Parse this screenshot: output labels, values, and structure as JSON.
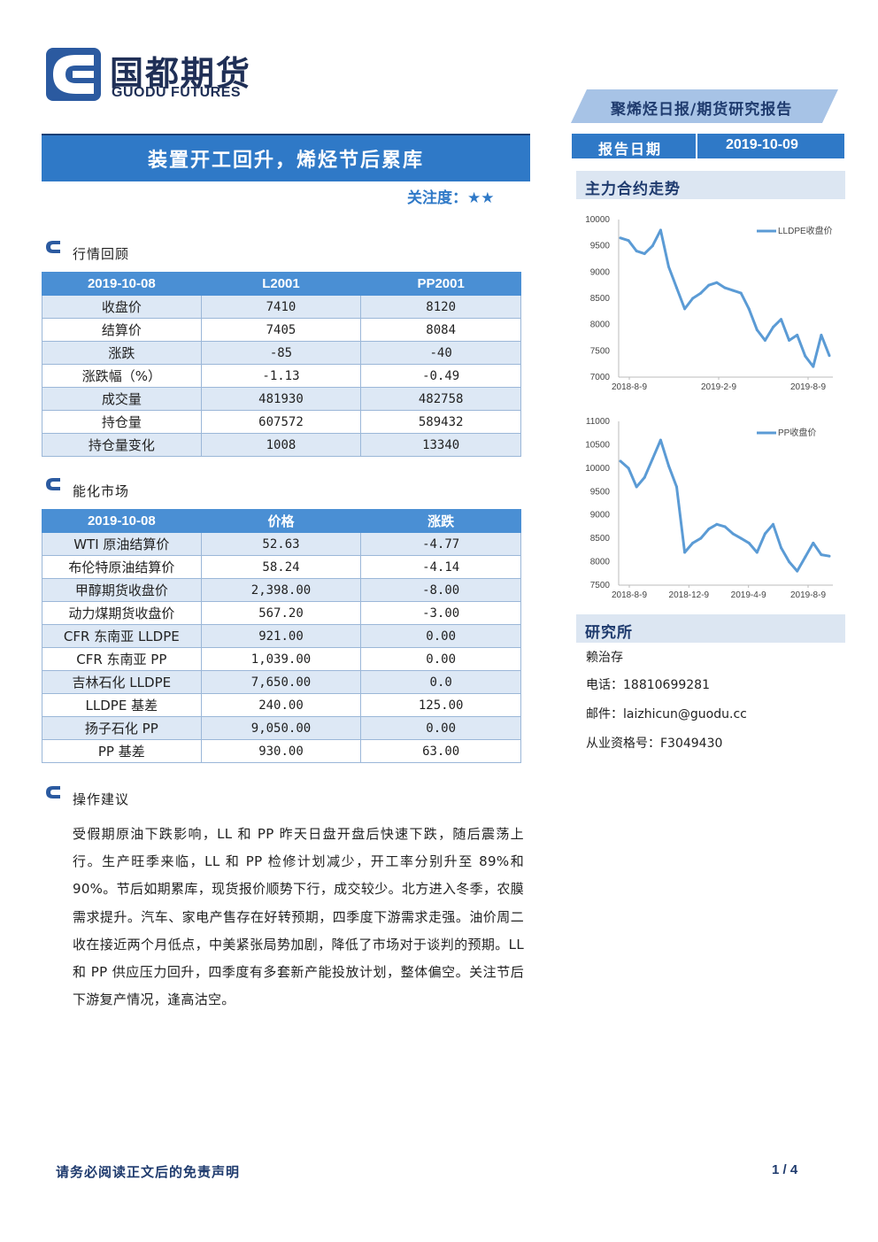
{
  "header": {
    "logo_cn": "国都期货",
    "logo_en": "GUODU FUTURES",
    "report_type": "聚烯烃日报/期货研究报告",
    "title": "装置开工回升，烯烃节后累库",
    "attention": "关注度：★★",
    "date_label": "报告日期",
    "date_value": "2019-10-09"
  },
  "market_review": {
    "heading": "行情回顾",
    "columns": [
      "2019-10-08",
      "L2001",
      "PP2001"
    ],
    "rows": [
      [
        "收盘价",
        "7410",
        "8120"
      ],
      [
        "结算价",
        "7405",
        "8084"
      ],
      [
        "涨跌",
        "-85",
        "-40"
      ],
      [
        "涨跌幅（%）",
        "-1.13",
        "-0.49"
      ],
      [
        "成交量",
        "481930",
        "482758"
      ],
      [
        "持仓量",
        "607572",
        "589432"
      ],
      [
        "持仓量变化",
        "1008",
        "13340"
      ]
    ]
  },
  "energy_market": {
    "heading": "能化市场",
    "columns": [
      "2019-10-08",
      "价格",
      "涨跌"
    ],
    "rows": [
      [
        "WTI 原油结算价",
        "52.63",
        "-4.77"
      ],
      [
        "布伦特原油结算价",
        "58.24",
        "-4.14"
      ],
      [
        "甲醇期货收盘价",
        "2,398.00",
        "-8.00"
      ],
      [
        "动力煤期货收盘价",
        "567.20",
        "-3.00"
      ],
      [
        "CFR 东南亚 LLDPE",
        "921.00",
        "0.00"
      ],
      [
        "CFR 东南亚 PP",
        "1,039.00",
        "0.00"
      ],
      [
        "吉林石化 LLDPE",
        "7,650.00",
        "0.0"
      ],
      [
        "LLDPE 基差",
        "240.00",
        "125.00"
      ],
      [
        "扬子石化 PP",
        "9,050.00",
        "0.00"
      ],
      [
        "PP 基差",
        "930.00",
        "63.00"
      ]
    ]
  },
  "advice": {
    "heading": "操作建议",
    "text": "受假期原油下跌影响，LL 和 PP 昨天日盘开盘后快速下跌，随后震荡上行。生产旺季来临，LL 和 PP 检修计划减少，开工率分别升至 89%和 90%。节后如期累库，现货报价顺势下行，成交较少。北方进入冬季，农膜需求提升。汽车、家电产售存在好转预期，四季度下游需求走强。油价周二收在接近两个月低点，中美紧张局势加剧，降低了市场对于谈判的预期。LL 和 PP 供应压力回升，四季度有多套新产能投放计划，整体偏空。关注节后下游复产情况，逢高沽空。"
  },
  "sidebar": {
    "trend_heading": "主力合约走势",
    "institute_heading": "研究所",
    "analyst": "赖治存",
    "phone": "电话：18810699281",
    "email": "邮件：laizhicun@guodu.cc",
    "license": "从业资格号：F3049430"
  },
  "chart_data": [
    {
      "type": "line",
      "series": [
        {
          "name": "LLDPE收盘价",
          "values": [
            9650,
            9600,
            9400,
            9350,
            9500,
            9800,
            9100,
            8700,
            8300,
            8500,
            8600,
            8750,
            8800,
            8700,
            8650,
            8600,
            8300,
            7900,
            7700,
            7950,
            8100,
            7700,
            7800,
            7400,
            7200,
            7800,
            7410
          ]
        }
      ],
      "x_ticks": [
        "2018-8-9",
        "2019-2-9",
        "2019-8-9"
      ],
      "ylim": [
        7000,
        10000
      ],
      "y_ticks": [
        10000,
        9500,
        9000,
        8500,
        8000,
        7500,
        7000
      ],
      "xlabel": "",
      "ylabel": "",
      "legend": "top-right",
      "color": "#5b9bd5"
    },
    {
      "type": "line",
      "series": [
        {
          "name": "PP收盘价",
          "values": [
            10150,
            10000,
            9600,
            9800,
            10200,
            10600,
            10050,
            9600,
            8200,
            8400,
            8500,
            8700,
            8800,
            8750,
            8600,
            8500,
            8400,
            8200,
            8600,
            8800,
            8300,
            8000,
            7800,
            8100,
            8400,
            8150,
            8120
          ]
        }
      ],
      "x_ticks": [
        "2018-8-9",
        "2018-12-9",
        "2019-4-9",
        "2019-8-9"
      ],
      "ylim": [
        7500,
        11000
      ],
      "y_ticks": [
        11000,
        10500,
        10000,
        9500,
        9000,
        8500,
        8000,
        7500
      ],
      "xlabel": "",
      "ylabel": "",
      "legend": "top-right",
      "color": "#5b9bd5"
    }
  ],
  "footer": {
    "disclaimer": "请务必阅读正文后的免责声明",
    "page": "1 / 4"
  }
}
